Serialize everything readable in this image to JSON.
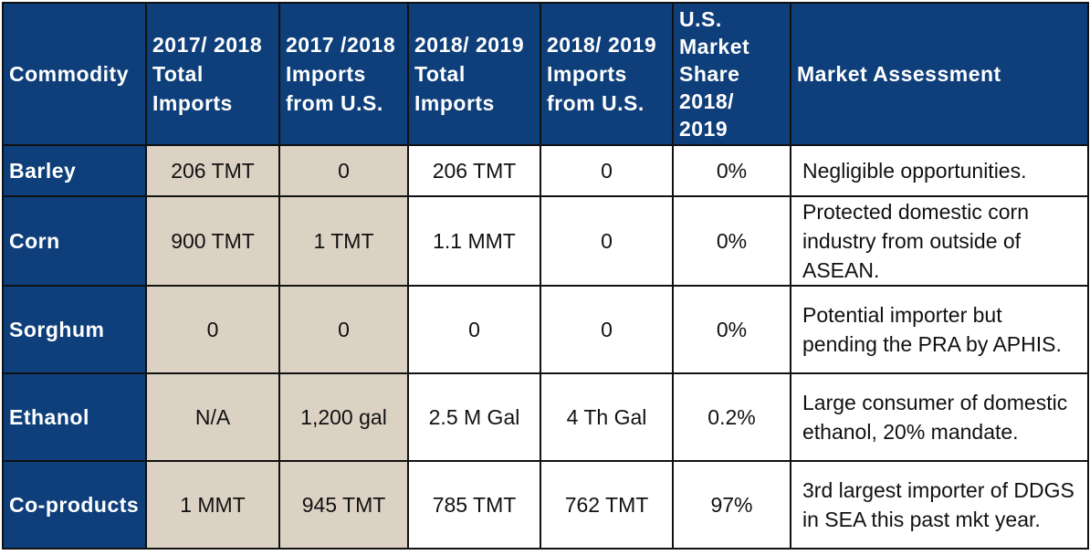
{
  "table": {
    "headers": [
      "Commodity",
      "2017/ 2018 Total Imports",
      "2017 /2018 Imports from U.S.",
      "2018/ 2019 Total Imports",
      "2018/ 2019 Imports from U.S.",
      "U.S. Market Share 2018/ 2019",
      "Market Assessment"
    ],
    "rows": [
      [
        "Barley",
        "206 TMT",
        "0",
        "206 TMT",
        "0",
        "0%",
        "Negligible opportunities."
      ],
      [
        "Corn",
        "900 TMT",
        "1 TMT",
        "1.1 MMT",
        "0",
        "0%",
        "Protected domestic corn industry from outside of ASEAN."
      ],
      [
        "Sorghum",
        "0",
        "0",
        "0",
        "0",
        "0%",
        "Potential importer but pending the PRA by APHIS."
      ],
      [
        "Ethanol",
        "N/A",
        "1,200 gal",
        "2.5 M Gal",
        "4 Th Gal",
        "0.2%",
        "Large consumer of domestic ethanol, 20% mandate."
      ],
      [
        "Co-products",
        "1 MMT",
        "945 TMT",
        "785 TMT",
        "762 TMT",
        "97%",
        "3rd largest importer of DDGS in SEA this past mkt year."
      ]
    ]
  },
  "colors": {
    "header_bg": "#0e3f7a",
    "shaded_cell_bg": "#dcd2c4",
    "border": "#111111"
  }
}
